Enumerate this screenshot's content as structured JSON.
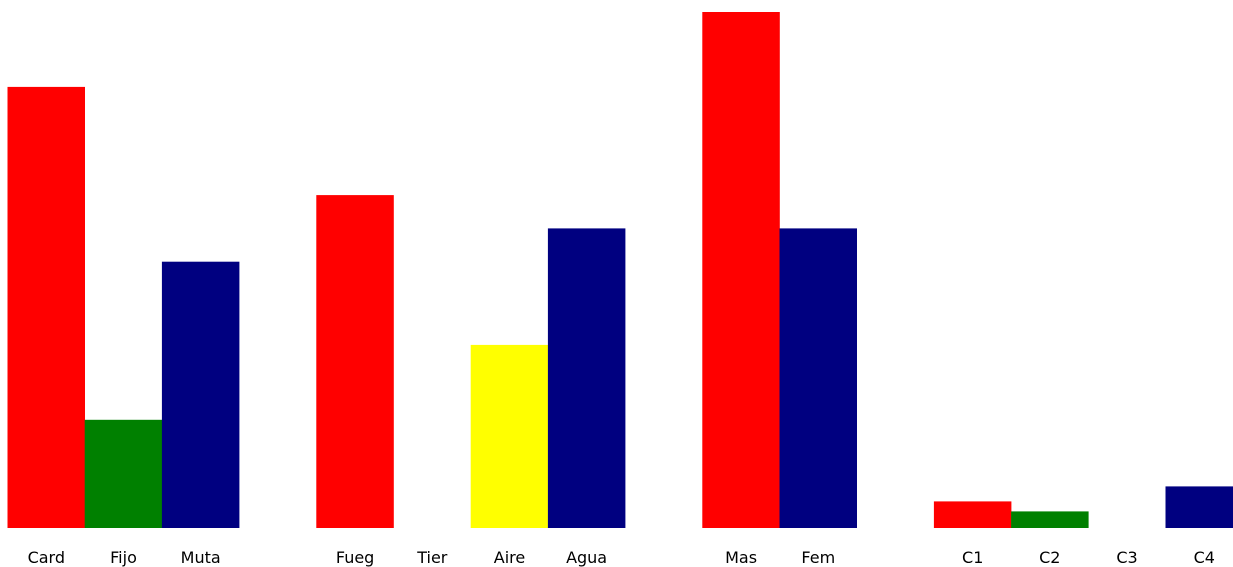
{
  "chart_data": {
    "type": "bar",
    "title": "",
    "xlabel": "",
    "ylabel": "",
    "grid": false,
    "legend": "none",
    "ylim": [
      0,
      31
    ],
    "groups": [
      {
        "categories": [
          "Card",
          "Fijo",
          "Muta"
        ],
        "values": [
          26.5,
          6.5,
          16
        ],
        "colors": [
          "#ff0000",
          "#008000",
          "#000080"
        ]
      },
      {
        "categories": [
          "Fueg",
          "Tier",
          "Aire",
          "Agua"
        ],
        "values": [
          20,
          0,
          11,
          18
        ],
        "colors": [
          "#ff0000",
          "#008000",
          "#ffff00",
          "#000080"
        ]
      },
      {
        "categories": [
          "Mas",
          "Fem"
        ],
        "values": [
          31,
          18
        ],
        "colors": [
          "#ff0000",
          "#000080"
        ]
      },
      {
        "categories": [
          "C1",
          "C2",
          "C3",
          "C4"
        ],
        "values": [
          1.6,
          1,
          0,
          2.5
        ],
        "colors": [
          "#ff0000",
          "#008000",
          "#ffff00",
          "#000080"
        ]
      }
    ]
  }
}
